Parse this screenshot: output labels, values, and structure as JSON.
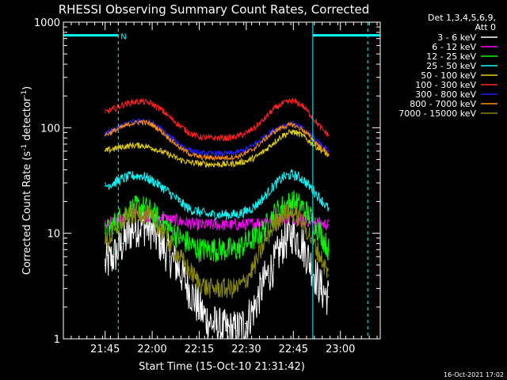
{
  "chart_data": {
    "type": "line",
    "title": "RHESSI Observing Summary Count Rates, Corrected",
    "xlabel": "Start Time (15-Oct-10 21:31:42)",
    "ylabel_main": "Corrected Count Rate (s",
    "ylabel_sup1": "-1",
    "ylabel_mid": " detector",
    "ylabel_sup2": "-1",
    "ylabel_end": ")",
    "yscale": "log",
    "ylim": [
      1,
      1000
    ],
    "y_ticks": [
      {
        "value": 1,
        "label": "1"
      },
      {
        "value": 10,
        "label": "10"
      },
      {
        "value": 100,
        "label": "100"
      },
      {
        "value": 1000,
        "label": "1000"
      }
    ],
    "xlim_min": [
      0,
      101
    ],
    "x_ticks": [
      {
        "min": 13.3,
        "label": "21:45"
      },
      {
        "min": 28.3,
        "label": "22:00"
      },
      {
        "min": 43.3,
        "label": "22:15"
      },
      {
        "min": 58.3,
        "label": "22:30"
      },
      {
        "min": 73.3,
        "label": "22:45"
      },
      {
        "min": 88.3,
        "label": "23:00"
      }
    ],
    "legend": {
      "header": [
        "Det 1,3,4,5,6,9,",
        "Att 0"
      ],
      "placement": "right",
      "entries": [
        {
          "label": "3 - 6 keV",
          "color": "#ffffff"
        },
        {
          "label": "6 - 12 keV",
          "color": "#ff00ff"
        },
        {
          "label": "12 - 25 keV",
          "color": "#00ff00"
        },
        {
          "label": "25 - 50 keV",
          "color": "#00ffff"
        },
        {
          "label": "50 - 100 keV",
          "color": "#e6d200"
        },
        {
          "label": "100 - 300 keV",
          "color": "#ff2020"
        },
        {
          "label": "300 - 800 keV",
          "color": "#2020ff"
        },
        {
          "label": "800 - 7000 keV",
          "color": "#ff8c00"
        },
        {
          "label": "7000 - 15000 keV",
          "color": "#8a8a00"
        }
      ]
    },
    "annotations": {
      "night_label": "N",
      "bars_y": 750,
      "bars": [
        [
          0,
          17.5
        ],
        [
          79.5,
          101
        ]
      ],
      "cyan_dashed_min": [
        17.5,
        97
      ],
      "cyan_solid_min": [
        79.5
      ]
    },
    "series_time_min": [
      13.3,
      16,
      19,
      22,
      25,
      28,
      31,
      34,
      37,
      40,
      43,
      46,
      49,
      52,
      55,
      58,
      61,
      64,
      67,
      70,
      73,
      76,
      79,
      82,
      84.5
    ],
    "series": [
      {
        "name": "3 - 6 keV",
        "color": "#ffffff",
        "noise": 0.2,
        "values": [
          5,
          6,
          8,
          11,
          12,
          11,
          8,
          6,
          4.5,
          3,
          2,
          1.5,
          1.3,
          1.2,
          1.2,
          1.4,
          2,
          3.5,
          5,
          8,
          10,
          8,
          5,
          3,
          2.5
        ]
      },
      {
        "name": "6 - 12 keV",
        "color": "#ff00ff",
        "noise": 0.06,
        "values": [
          12,
          13,
          14,
          15,
          15,
          14.5,
          14,
          13.5,
          13,
          12.5,
          12,
          12,
          12,
          12,
          12,
          12,
          12.5,
          13,
          13.5,
          14,
          14,
          13.5,
          13,
          12.5,
          12
        ]
      },
      {
        "name": "12 - 25 keV",
        "color": "#00ff00",
        "noise": 0.12,
        "values": [
          10,
          12,
          15,
          17,
          18,
          16,
          13,
          11,
          9,
          8,
          7,
          7,
          7,
          7,
          7,
          8,
          9,
          11,
          15,
          18,
          20,
          18,
          14,
          10,
          7
        ]
      },
      {
        "name": "25 - 50 keV",
        "color": "#00ffff",
        "noise": 0.05,
        "values": [
          28,
          30,
          33,
          35,
          35,
          32,
          28,
          24,
          20,
          17,
          16,
          15,
          15,
          15,
          15,
          16,
          18,
          22,
          28,
          34,
          36,
          33,
          27,
          21,
          17
        ]
      },
      {
        "name": "50 - 100 keV",
        "color": "#e6d200",
        "noise": 0.03,
        "values": [
          60,
          63,
          66,
          68,
          68,
          65,
          60,
          55,
          50,
          47,
          46,
          45,
          45,
          45,
          46,
          48,
          52,
          60,
          72,
          85,
          92,
          85,
          72,
          62,
          55
        ]
      },
      {
        "name": "100 - 300 keV",
        "color": "#ff2020",
        "noise": 0.03,
        "values": [
          140,
          150,
          165,
          175,
          178,
          170,
          150,
          125,
          105,
          90,
          82,
          80,
          80,
          80,
          82,
          88,
          100,
          120,
          150,
          170,
          180,
          165,
          130,
          100,
          85
        ]
      },
      {
        "name": "300 - 800 keV",
        "color": "#2020ff",
        "noise": 0.025,
        "values": [
          88,
          96,
          105,
          113,
          117,
          112,
          98,
          82,
          70,
          62,
          58,
          57,
          57,
          57,
          58,
          62,
          70,
          82,
          95,
          105,
          110,
          100,
          85,
          70,
          60
        ]
      },
      {
        "name": "800 - 7000 keV",
        "color": "#ff8c00",
        "noise": 0.025,
        "values": [
          85,
          93,
          102,
          110,
          114,
          108,
          94,
          78,
          65,
          57,
          53,
          52,
          52,
          52,
          53,
          57,
          64,
          77,
          91,
          102,
          107,
          97,
          80,
          65,
          56
        ]
      },
      {
        "name": "7000 - 15000 keV",
        "color": "#8a8a00",
        "noise": 0.1,
        "values": [
          8,
          10,
          13,
          15,
          16,
          14,
          11,
          8,
          6,
          4.5,
          3.5,
          3,
          3,
          3,
          3,
          3.5,
          5,
          8,
          12,
          15,
          16,
          13,
          9,
          6,
          4
        ]
      }
    ]
  },
  "footer": {
    "timestamp": "16-Oct-2021 17:02"
  }
}
